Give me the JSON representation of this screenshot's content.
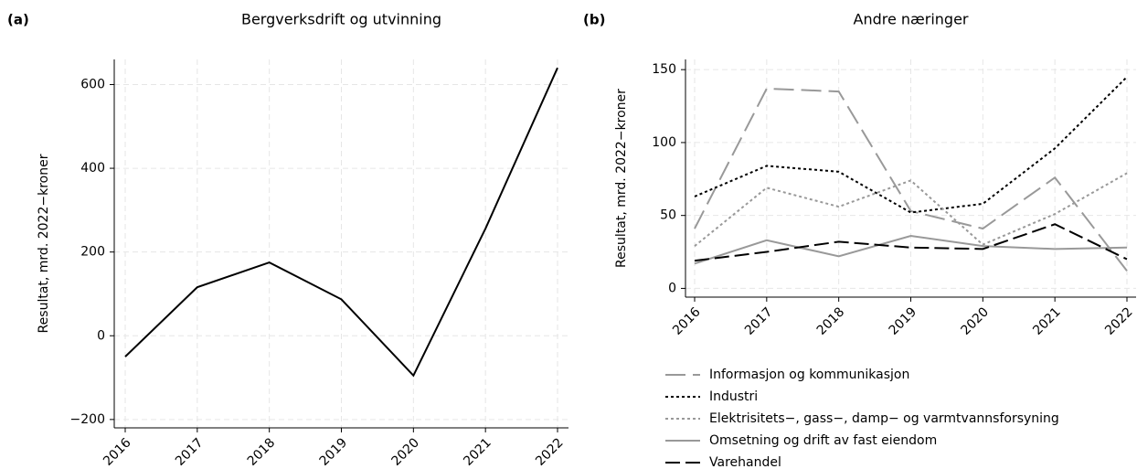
{
  "chart_data": [
    {
      "type": "line",
      "panel": "(a)",
      "title": "Bergverksdrift og utvinning",
      "ylabel": "Resultat, mrd. 2022−kroner",
      "categories": [
        "2016",
        "2017",
        "2018",
        "2019",
        "2020",
        "2021",
        "2022"
      ],
      "series": [
        {
          "name": null,
          "color": "#000000",
          "values": [
            -50,
            116,
            175,
            87,
            -95,
            256,
            640
          ]
        }
      ],
      "ylim": [
        -220,
        660
      ],
      "yticks": [
        {
          "value": -200,
          "label": "−200"
        },
        0,
        200,
        400,
        600
      ],
      "grid": true
    },
    {
      "type": "line",
      "panel": "(b)",
      "title": "Andre næringer",
      "ylabel": "Resultat, mrd. 2022−kroner",
      "categories": [
        "2016",
        "2017",
        "2018",
        "2019",
        "2020",
        "2021",
        "2022"
      ],
      "series": [
        {
          "name": "Informasjon og kommunikasjon",
          "color": "#999999",
          "values": [
            41,
            137,
            135,
            53,
            41,
            76,
            12
          ]
        },
        {
          "name": "Industri",
          "color": "#000000",
          "values": [
            63,
            84,
            80,
            52,
            58,
            96,
            145
          ]
        },
        {
          "name": "Elektrisitets−, gass−, damp− og varmtvannsforsyning",
          "color": "#999999",
          "values": [
            29,
            69,
            56,
            74,
            30,
            51,
            79
          ]
        },
        {
          "name": "Omsetning og drift av fast eiendom",
          "color": "#999999",
          "values": [
            17,
            33,
            22,
            36,
            29,
            27,
            28
          ]
        },
        {
          "name": "Varehandel",
          "color": "#000000",
          "values": [
            19,
            25,
            32,
            28,
            27,
            44,
            20
          ]
        }
      ],
      "ylim": [
        -6,
        157
      ],
      "yticks": [
        0,
        50,
        100,
        150
      ],
      "grid": true,
      "legend": "bottom"
    }
  ]
}
